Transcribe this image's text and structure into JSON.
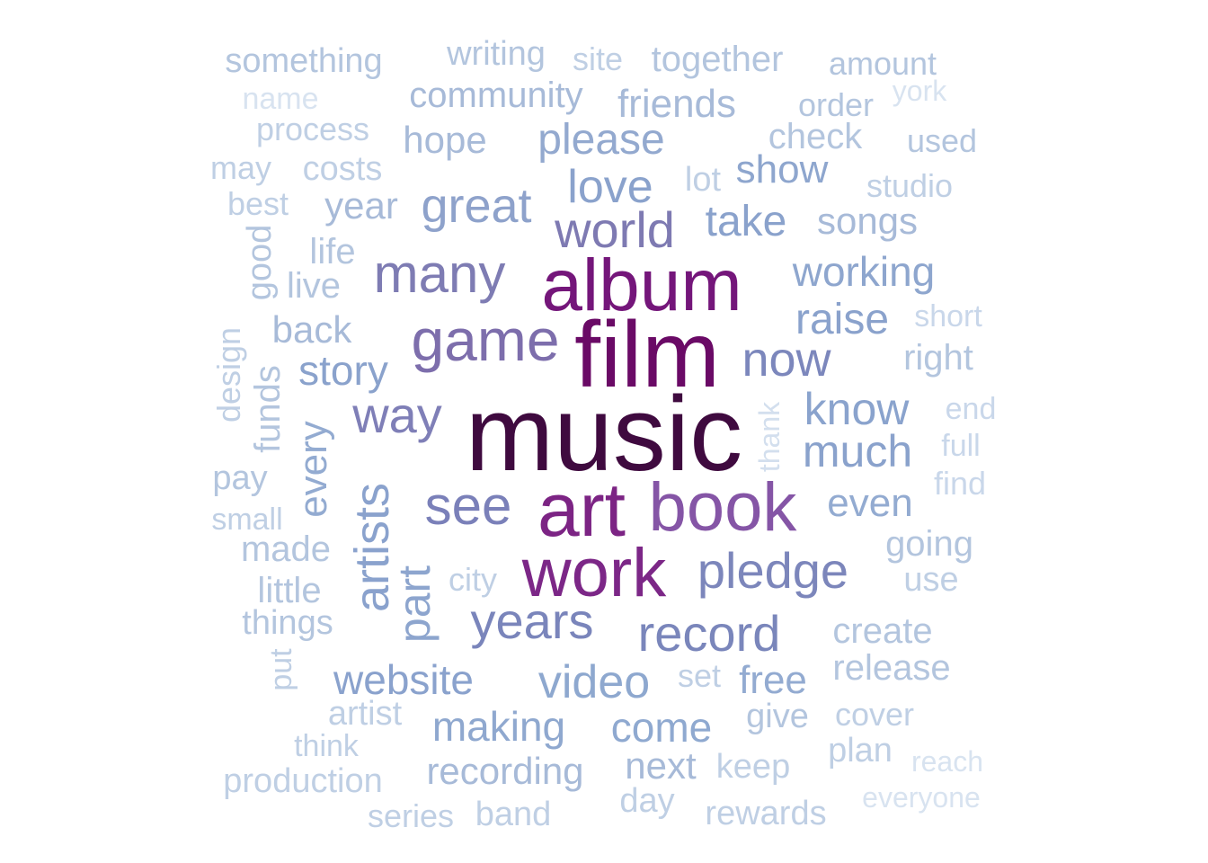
{
  "words": [
    {
      "text": "music",
      "color": "#3f0a3f"
    },
    {
      "text": "film",
      "color": "#6a0a66"
    },
    {
      "text": "album",
      "color": "#74167a"
    },
    {
      "text": "art",
      "color": "#7c2484"
    },
    {
      "text": "work",
      "color": "#7c2787"
    },
    {
      "text": "book",
      "color": "#8555a6"
    },
    {
      "text": "game",
      "color": "#7d6eac"
    },
    {
      "text": "many",
      "color": "#7e7cb3"
    },
    {
      "text": "see",
      "color": "#7a80b9"
    },
    {
      "text": "pledge",
      "color": "#7c86bb"
    },
    {
      "text": "record",
      "color": "#7a86bb"
    },
    {
      "text": "years",
      "color": "#7a85bb"
    },
    {
      "text": "world",
      "color": "#7e7ab2"
    },
    {
      "text": "way",
      "color": "#7f7fb7"
    },
    {
      "text": "now",
      "color": "#7c87bc"
    },
    {
      "text": "great",
      "color": "#8ea2cb"
    },
    {
      "text": "love",
      "color": "#8aa2cc"
    },
    {
      "text": "please",
      "color": "#93a9cf"
    },
    {
      "text": "artists",
      "color": "#8aa2cd"
    },
    {
      "text": "part",
      "color": "#8da5ce"
    },
    {
      "text": "video",
      "color": "#8ea8cf"
    },
    {
      "text": "making",
      "color": "#8fa8cf"
    },
    {
      "text": "come",
      "color": "#8fa9d0"
    },
    {
      "text": "website",
      "color": "#8aa2cd"
    },
    {
      "text": "raise",
      "color": "#8aa2cc"
    },
    {
      "text": "know",
      "color": "#8aa3cd"
    },
    {
      "text": "much",
      "color": "#8aa2cc"
    },
    {
      "text": "working",
      "color": "#8ea6ce"
    },
    {
      "text": "take",
      "color": "#8aa2cc"
    },
    {
      "text": "show",
      "color": "#8ea6ce"
    },
    {
      "text": "story",
      "color": "#8aa2cc"
    },
    {
      "text": "even",
      "color": "#93abd1"
    },
    {
      "text": "every",
      "color": "#93abd1"
    },
    {
      "text": "free",
      "color": "#93abd1"
    },
    {
      "text": "recording",
      "color": "#a7bad8"
    },
    {
      "text": "next",
      "color": "#a7bad8"
    },
    {
      "text": "back",
      "color": "#a7bad8"
    },
    {
      "text": "hope",
      "color": "#a7bad8"
    },
    {
      "text": "year",
      "color": "#a7bad8"
    },
    {
      "text": "community",
      "color": "#a7bad8"
    },
    {
      "text": "friends",
      "color": "#a7bad8"
    },
    {
      "text": "songs",
      "color": "#a7bad8"
    },
    {
      "text": "right",
      "color": "#b3c5de"
    },
    {
      "text": "check",
      "color": "#b3c5de"
    },
    {
      "text": "going",
      "color": "#b3c5de"
    },
    {
      "text": "create",
      "color": "#b3c5de"
    },
    {
      "text": "release",
      "color": "#b3c5de"
    },
    {
      "text": "give",
      "color": "#b3c5de"
    },
    {
      "text": "funds",
      "color": "#b3c5de"
    },
    {
      "text": "made",
      "color": "#b3c5de"
    },
    {
      "text": "little",
      "color": "#b3c5de"
    },
    {
      "text": "things",
      "color": "#b3c5de"
    },
    {
      "text": "life",
      "color": "#b3c5de"
    },
    {
      "text": "live",
      "color": "#b3c5de"
    },
    {
      "text": "good",
      "color": "#b3c5de"
    },
    {
      "text": "pay",
      "color": "#b3c5de"
    },
    {
      "text": "together",
      "color": "#b3c5de"
    },
    {
      "text": "writing",
      "color": "#b3c5de"
    },
    {
      "text": "something",
      "color": "#b3c5de"
    },
    {
      "text": "amount",
      "color": "#b3c5de"
    },
    {
      "text": "order",
      "color": "#b3c5de"
    },
    {
      "text": "used",
      "color": "#b3c5de"
    },
    {
      "text": "studio",
      "color": "#bfcfe4"
    },
    {
      "text": "lot",
      "color": "#bfcfe4"
    },
    {
      "text": "costs",
      "color": "#bfcfe4"
    },
    {
      "text": "process",
      "color": "#bfcfe4"
    },
    {
      "text": "may",
      "color": "#bfcfe4"
    },
    {
      "text": "best",
      "color": "#bfcfe4"
    },
    {
      "text": "site",
      "color": "#bfcfe4"
    },
    {
      "text": "design",
      "color": "#bfcfe4"
    },
    {
      "text": "small",
      "color": "#bfcfe4"
    },
    {
      "text": "city",
      "color": "#bfcfe4"
    },
    {
      "text": "use",
      "color": "#bfcfe4"
    },
    {
      "text": "set",
      "color": "#bfcfe4"
    },
    {
      "text": "cover",
      "color": "#bfcfe4"
    },
    {
      "text": "plan",
      "color": "#bfcfe4"
    },
    {
      "text": "keep",
      "color": "#bfcfe4"
    },
    {
      "text": "day",
      "color": "#bfcfe4"
    },
    {
      "text": "band",
      "color": "#bfcfe4"
    },
    {
      "text": "series",
      "color": "#bfcfe4"
    },
    {
      "text": "rewards",
      "color": "#bfcfe4"
    },
    {
      "text": "production",
      "color": "#bfcfe4"
    },
    {
      "text": "think",
      "color": "#bfcfe4"
    },
    {
      "text": "artist",
      "color": "#bfcfe4"
    },
    {
      "text": "put",
      "color": "#bfcfe4"
    },
    {
      "text": "short",
      "color": "#c9d7ea"
    },
    {
      "text": "end",
      "color": "#c9d7ea"
    },
    {
      "text": "full",
      "color": "#c9d7ea"
    },
    {
      "text": "find",
      "color": "#c9d7ea"
    },
    {
      "text": "thank",
      "color": "#d3dfee"
    },
    {
      "text": "name",
      "color": "#d8e3f0"
    },
    {
      "text": "york",
      "color": "#d8e3f0"
    },
    {
      "text": "reach",
      "color": "#d8e3f0"
    },
    {
      "text": "everyone",
      "color": "#d8e3f0"
    }
  ]
}
